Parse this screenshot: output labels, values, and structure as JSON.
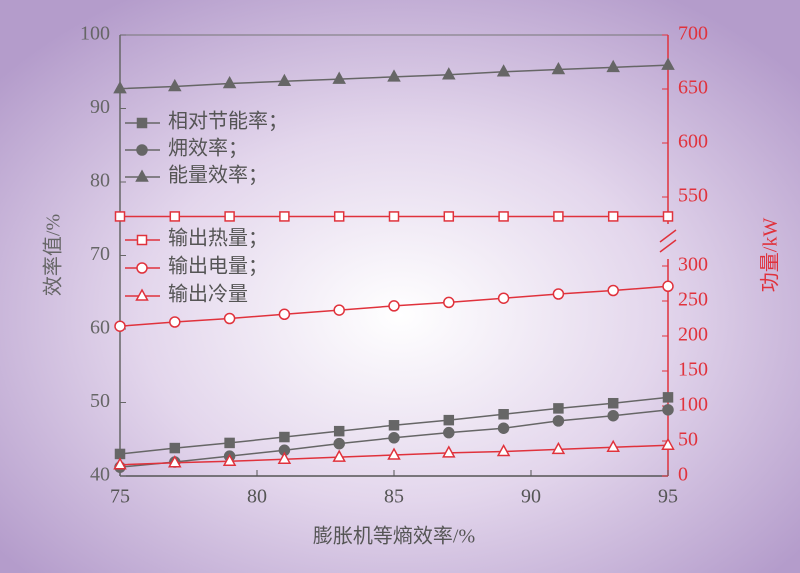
{
  "chart_data": {
    "type": "line",
    "xlabel": "膨胀机等熵效率/%",
    "ylabel": "效率值/%",
    "y2label": "功量/kW",
    "x": [
      75,
      77,
      79,
      81,
      83,
      85,
      87,
      89,
      91,
      93,
      95
    ],
    "xlim": [
      75,
      95
    ],
    "xticks": [
      75,
      80,
      85,
      90,
      95
    ],
    "ylim": [
      40,
      100
    ],
    "yticks": [
      40,
      50,
      60,
      70,
      80,
      90,
      100
    ],
    "y2lim": [
      0,
      700
    ],
    "y2break": [
      310,
      525
    ],
    "y2ticks": [
      0,
      50,
      100,
      150,
      200,
      250,
      300,
      550,
      600,
      650,
      700
    ],
    "legend": "upper left",
    "series": [
      {
        "name": "相对节能率；",
        "color": "#666666",
        "marker": "square",
        "filled": true,
        "values": [
          43.0,
          43.8,
          44.5,
          45.3,
          46.1,
          46.9,
          47.6,
          48.4,
          49.2,
          49.9,
          50.7
        ]
      },
      {
        "name": "㶲效率；",
        "color": "#666666",
        "marker": "circle",
        "filled": true,
        "values": [
          41.2,
          41.9,
          42.7,
          43.5,
          44.4,
          45.2,
          45.9,
          46.5,
          47.5,
          48.2,
          49.0
        ]
      },
      {
        "name": "能量效率；",
        "color": "#666666",
        "marker": "triangle",
        "filled": true,
        "values": [
          92.7,
          93.0,
          93.4,
          93.7,
          94.0,
          94.3,
          94.6,
          95.0,
          95.3,
          95.6,
          95.9
        ]
      },
      {
        "name": "输出热量；",
        "color": "#e0323c",
        "marker": "square",
        "filled": false,
        "axis": "y2",
        "values": [
          532,
          532,
          532,
          532,
          532,
          532,
          532,
          532,
          532,
          532,
          532
        ]
      },
      {
        "name": "输出电量；",
        "color": "#e0323c",
        "marker": "circle",
        "filled": false,
        "axis": "y2",
        "values": [
          214,
          220,
          225,
          231,
          237,
          243,
          248,
          254,
          260,
          265,
          271
        ]
      },
      {
        "name": "输出冷量",
        "color": "#e0323c",
        "marker": "triangle",
        "filled": false,
        "axis": "y2",
        "values": [
          16,
          19,
          21,
          24,
          27,
          30,
          33,
          35,
          38,
          41,
          44
        ]
      }
    ]
  }
}
